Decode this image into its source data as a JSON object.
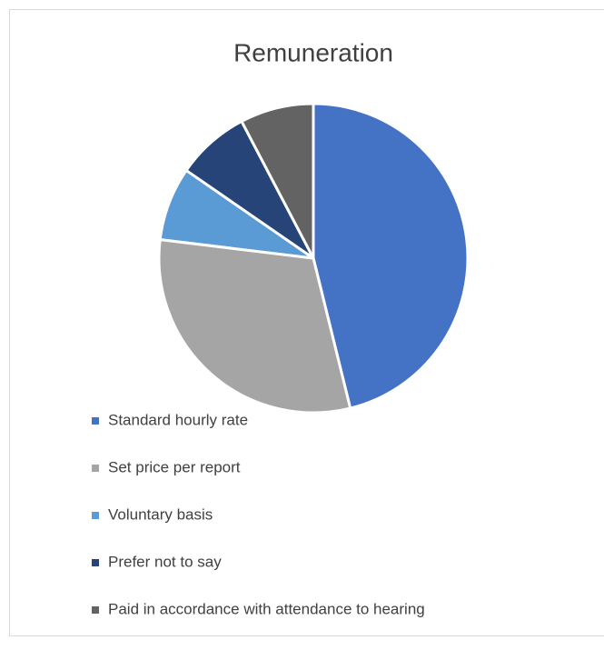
{
  "chart_data": {
    "type": "pie",
    "title": "Remuneration",
    "categories": [
      "Standard hourly rate",
      "Set price per report",
      "Voluntary basis",
      "Prefer not to say",
      "Paid in accordance with attendance to hearing"
    ],
    "values": [
      46.2,
      30.8,
      7.7,
      7.7,
      7.7
    ],
    "colors": [
      "#4472c4",
      "#a5a5a5",
      "#5b9bd5",
      "#264478",
      "#636363"
    ],
    "legend": "bottom"
  }
}
